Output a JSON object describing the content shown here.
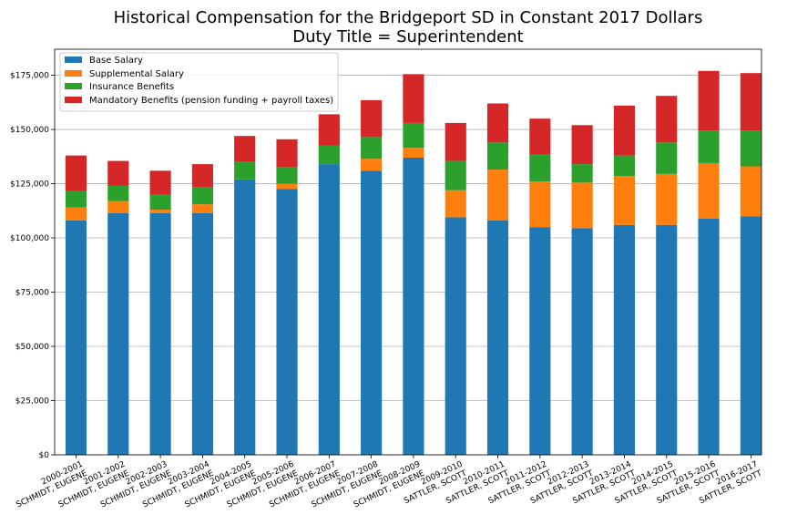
{
  "chart_data": {
    "type": "bar",
    "stacked": true,
    "title": "Historical Compensation for the Bridgeport SD in Constant 2017 Dollars",
    "subtitle": "Duty Title = Superintendent",
    "xlabel": "",
    "ylabel": "",
    "ylim": [
      0,
      187000
    ],
    "yticks": [
      0,
      25000,
      50000,
      75000,
      100000,
      125000,
      150000,
      175000
    ],
    "ytick_labels": [
      "$0",
      "$25,000",
      "$50,000",
      "$75,000",
      "$100,000",
      "$125,000",
      "$150,000",
      "$175,000"
    ],
    "grid": "horizontal",
    "legend_position": "top-left",
    "categories": [
      [
        "2000-2001",
        "SCHMIDT, EUGENE"
      ],
      [
        "2001-2002",
        "SCHMIDT, EUGENE"
      ],
      [
        "2002-2003",
        "SCHMIDT, EUGENE"
      ],
      [
        "2003-2004",
        "SCHMIDT, EUGENE"
      ],
      [
        "2004-2005",
        "SCHMIDT, EUGENE"
      ],
      [
        "2005-2006",
        "SCHMIDT, EUGENE"
      ],
      [
        "2006-2007",
        "SCHMIDT, EUGENE"
      ],
      [
        "2007-2008",
        "SCHMIDT, EUGENE"
      ],
      [
        "2008-2009",
        "SCHMIDT, EUGENE"
      ],
      [
        "2009-2010",
        "SATTLER, SCOTT"
      ],
      [
        "2010-2011",
        "SATTLER, SCOTT"
      ],
      [
        "2011-2012",
        "SATTLER, SCOTT"
      ],
      [
        "2012-2013",
        "SATTLER, SCOTT"
      ],
      [
        "2013-2014",
        "SATTLER, SCOTT"
      ],
      [
        "2014-2015",
        "SATTLER, SCOTT"
      ],
      [
        "2015-2016",
        "SATTLER, SCOTT"
      ],
      [
        "2016-2017",
        "SATTLER, SCOTT"
      ]
    ],
    "series": [
      {
        "name": "Base Salary",
        "color": "#1f77b4",
        "values": [
          108000,
          111500,
          111500,
          111500,
          127000,
          122500,
          134000,
          131000,
          137000,
          109500,
          108000,
          105000,
          104500,
          106000,
          106000,
          109000,
          110000
        ]
      },
      {
        "name": "Supplemental Salary",
        "color": "#ff7f0e",
        "values": [
          6000,
          5500,
          1500,
          4000,
          0,
          2500,
          0,
          5500,
          4500,
          12500,
          23500,
          21000,
          21000,
          22500,
          23500,
          25500,
          23000
        ]
      },
      {
        "name": "Insurance Benefits",
        "color": "#2ca02c",
        "values": [
          7500,
          7000,
          7000,
          8000,
          8000,
          7500,
          8500,
          10000,
          11500,
          13500,
          12500,
          12500,
          8500,
          9500,
          14500,
          15000,
          16500
        ]
      },
      {
        "name": "Mandatory Benefits (pension funding + payroll taxes)",
        "color": "#d62728",
        "values": [
          16500,
          11500,
          11000,
          10500,
          12000,
          13000,
          14500,
          17000,
          22500,
          17500,
          18000,
          16500,
          18000,
          23000,
          21500,
          27500,
          26500
        ]
      }
    ]
  }
}
